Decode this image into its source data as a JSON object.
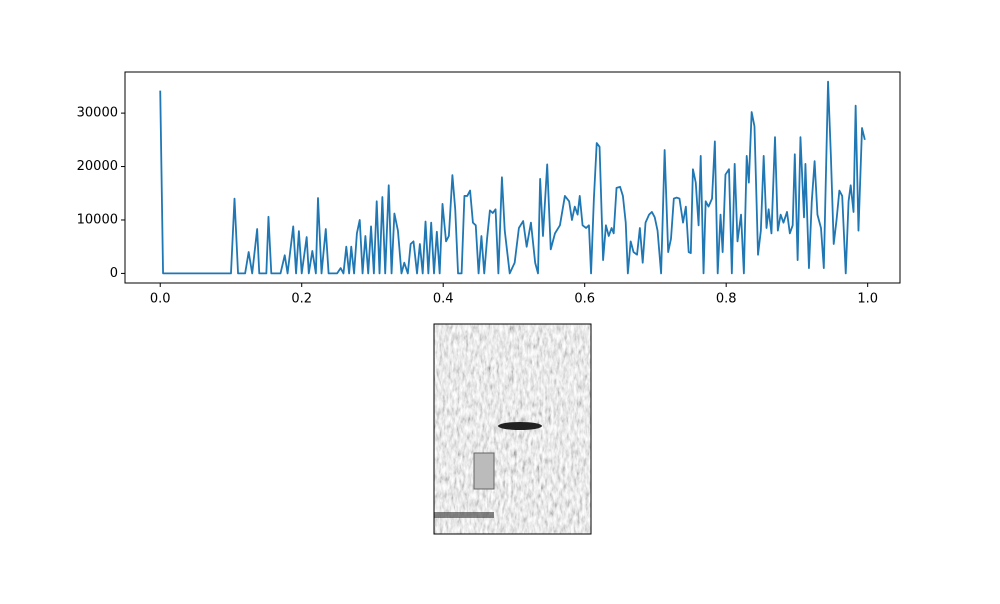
{
  "chart_data": {
    "type": "line",
    "x": [
      0,
      0.004,
      0.1,
      0.105,
      0.11,
      0.12,
      0.125,
      0.13,
      0.137,
      0.14,
      0.15,
      0.153,
      0.157,
      0.17,
      0.176,
      0.18,
      0.188,
      0.192,
      0.196,
      0.2,
      0.207,
      0.21,
      0.215,
      0.22,
      0.223,
      0.228,
      0.234,
      0.238,
      0.25,
      0.255,
      0.259,
      0.263,
      0.267,
      0.27,
      0.274,
      0.278,
      0.282,
      0.286,
      0.29,
      0.294,
      0.298,
      0.302,
      0.306,
      0.31,
      0.314,
      0.318,
      0.323,
      0.327,
      0.331,
      0.336,
      0.341,
      0.345,
      0.35,
      0.354,
      0.358,
      0.363,
      0.367,
      0.371,
      0.375,
      0.379,
      0.383,
      0.387,
      0.391,
      0.395,
      0.399,
      0.404,
      0.408,
      0.413,
      0.417,
      0.421,
      0.426,
      0.43,
      0.434,
      0.438,
      0.442,
      0.446,
      0.45,
      0.454,
      0.458,
      0.462,
      0.466,
      0.47,
      0.474,
      0.478,
      0.483,
      0.487,
      0.494,
      0.501,
      0.507,
      0.513,
      0.518,
      0.524,
      0.53,
      0.534,
      0.537,
      0.541,
      0.547,
      0.552,
      0.558,
      0.565,
      0.572,
      0.578,
      0.582,
      0.586,
      0.59,
      0.593,
      0.597,
      0.602,
      0.606,
      0.609,
      0.613,
      0.617,
      0.621,
      0.626,
      0.63,
      0.634,
      0.638,
      0.641,
      0.645,
      0.65,
      0.654,
      0.658,
      0.661,
      0.665,
      0.669,
      0.674,
      0.678,
      0.682,
      0.686,
      0.691,
      0.695,
      0.699,
      0.703,
      0.708,
      0.71,
      0.713,
      0.718,
      0.722,
      0.726,
      0.73,
      0.734,
      0.739,
      0.743,
      0.747,
      0.75,
      0.753,
      0.757,
      0.761,
      0.764,
      0.768,
      0.771,
      0.775,
      0.78,
      0.784,
      0.788,
      0.792,
      0.795,
      0.799,
      0.804,
      0.808,
      0.812,
      0.816,
      0.821,
      0.825,
      0.829,
      0.832,
      0.836,
      0.84,
      0.845,
      0.849,
      0.853,
      0.857,
      0.86,
      0.864,
      0.869,
      0.873,
      0.877,
      0.881,
      0.886,
      0.89,
      0.894,
      0.897,
      0.901,
      0.905,
      0.91,
      0.912,
      0.917,
      0.921,
      0.925,
      0.929,
      0.934,
      0.938,
      0.944,
      0.948,
      0.952,
      0.956,
      0.96,
      0.964,
      0.969,
      0.973,
      0.976,
      0.98,
      0.983,
      0.987,
      0.992,
      0.996
    ],
    "series": [
      {
        "color": "#1f77b4",
        "values": [
          34200,
          0,
          0,
          14000,
          0,
          0,
          4000,
          0,
          8300,
          0,
          0,
          10600,
          0,
          0,
          3400,
          0,
          8800,
          0,
          7900,
          0,
          6800,
          0,
          4200,
          0,
          14100,
          0,
          8300,
          0,
          0,
          1000,
          0,
          5000,
          0,
          5000,
          0,
          7500,
          10000,
          0,
          7000,
          0,
          8800,
          0,
          13500,
          0,
          14300,
          0,
          16500,
          0,
          11200,
          8000,
          0,
          2000,
          0,
          5500,
          6000,
          0,
          5500,
          0,
          9700,
          0,
          9500,
          0,
          7800,
          0,
          13000,
          6000,
          7000,
          18400,
          12000,
          0,
          0,
          14500,
          14500,
          15500,
          9500,
          9000,
          0,
          7000,
          0,
          6500,
          11800,
          11300,
          12000,
          0,
          18000,
          8000,
          0,
          2000,
          8500,
          9800,
          5000,
          9500,
          2000,
          0,
          17700,
          7000,
          20400,
          4500,
          7500,
          9000,
          14500,
          13500,
          10000,
          12500,
          11000,
          14500,
          9000,
          8500,
          9000,
          0,
          14000,
          24400,
          23700,
          2500,
          9000,
          7000,
          8500,
          7500,
          16000,
          16200,
          14500,
          9500,
          0,
          6000,
          4000,
          3500,
          8500,
          2000,
          9500,
          11000,
          11500,
          10500,
          8000,
          0,
          9000,
          23100,
          4000,
          6500,
          14000,
          14200,
          14000,
          9500,
          12500,
          4000,
          3800,
          19500,
          17000,
          9000,
          22000,
          0,
          13500,
          12500,
          14000,
          24700,
          0,
          11000,
          4000,
          18500,
          19500,
          0,
          20500,
          6000,
          11000,
          0,
          22000,
          17000,
          30200,
          27500,
          3500,
          8000,
          22000,
          8500,
          12000,
          7500,
          25500,
          8000,
          11000,
          9500,
          11500,
          7500,
          9000,
          22300,
          2500,
          25500,
          10500,
          20500,
          1000,
          13500,
          21000,
          11000,
          8500,
          1000,
          35900,
          22000,
          5500,
          10000,
          15500,
          14500,
          0,
          13500,
          16500,
          11500,
          31400,
          8000,
          27200,
          25000
        ]
      }
    ],
    "xlim": [
      -0.0498,
      1.0457
    ],
    "ylim": [
      -1795,
      37695
    ],
    "xticks": [
      {
        "value": 0,
        "label": "0.0"
      },
      0.2,
      0.4,
      0.6,
      0.8,
      {
        "value": 1,
        "label": "1.0"
      }
    ],
    "yticks": [
      0,
      10000,
      20000,
      30000
    ]
  }
}
